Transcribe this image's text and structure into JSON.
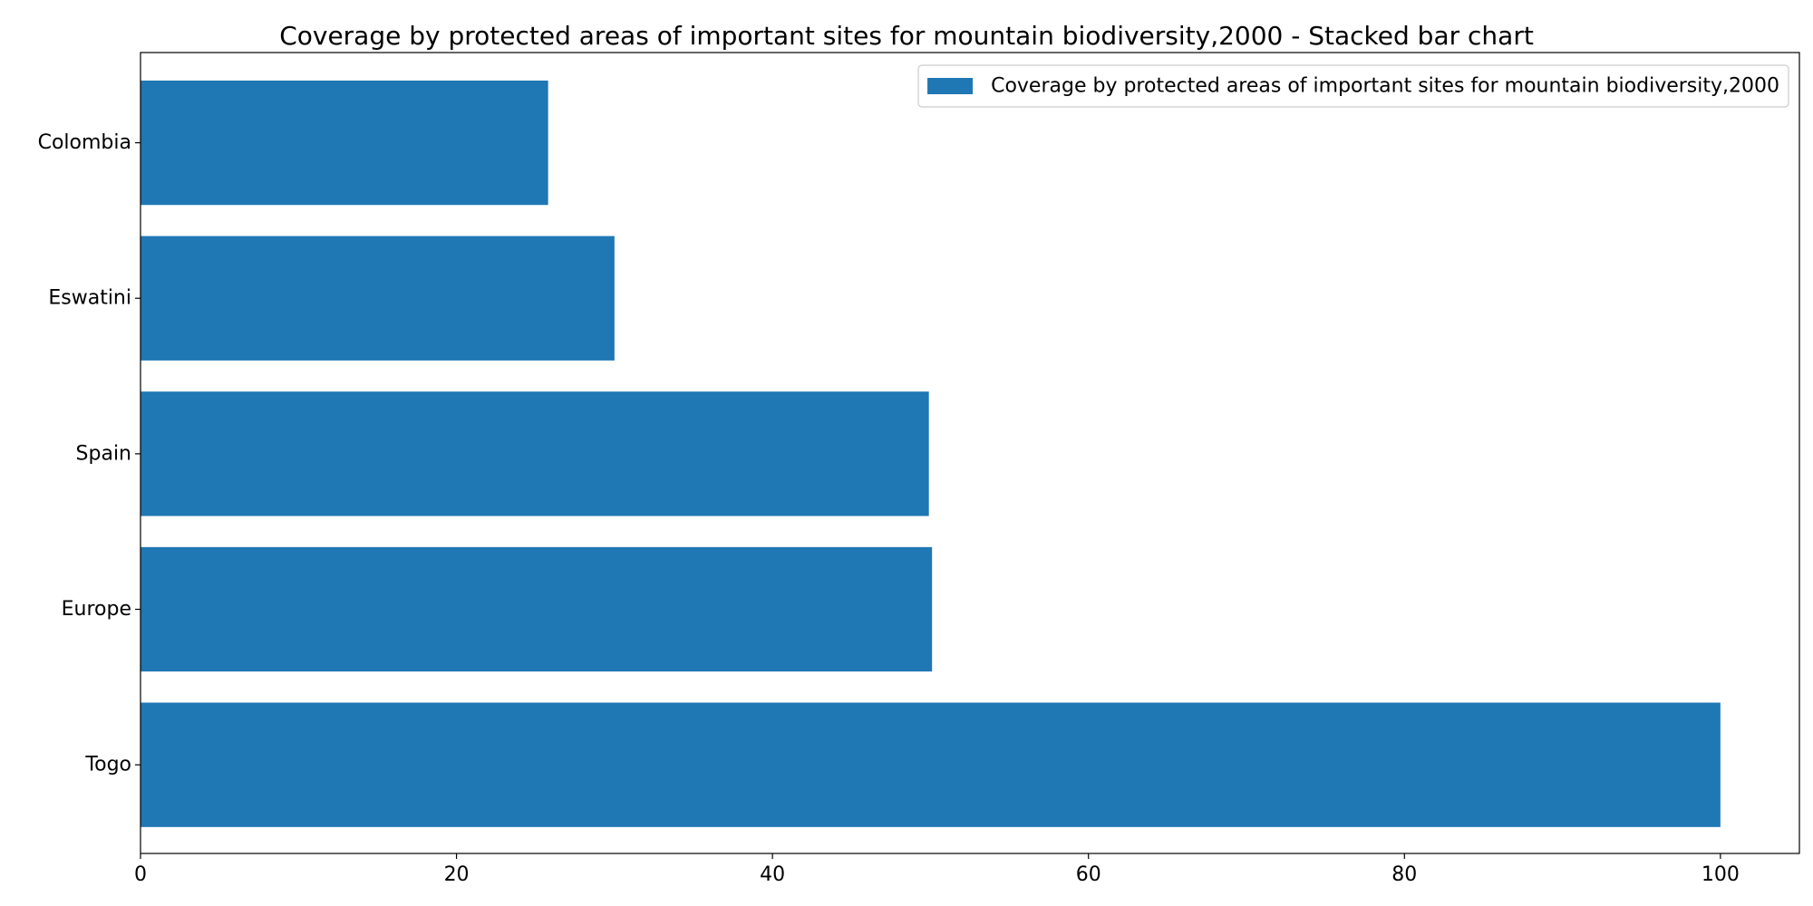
{
  "chart_data": {
    "type": "bar",
    "orientation": "horizontal",
    "title": "Coverage by protected areas of important sites for mountain biodiversity,2000 - Stacked bar chart",
    "xlabel": "",
    "ylabel": "",
    "categories": [
      "Togo",
      "Europe",
      "Spain",
      "Eswatini",
      "Colombia"
    ],
    "series": [
      {
        "name": "Coverage by protected areas of important sites for mountain biodiversity,2000",
        "color": "#1f77b4",
        "values": [
          100,
          50.1,
          49.9,
          30.0,
          25.8
        ]
      }
    ],
    "xlim": [
      0,
      105
    ],
    "xticks": [
      0,
      20,
      40,
      60,
      80,
      100
    ],
    "grid": false,
    "legend_position": "top-right"
  }
}
